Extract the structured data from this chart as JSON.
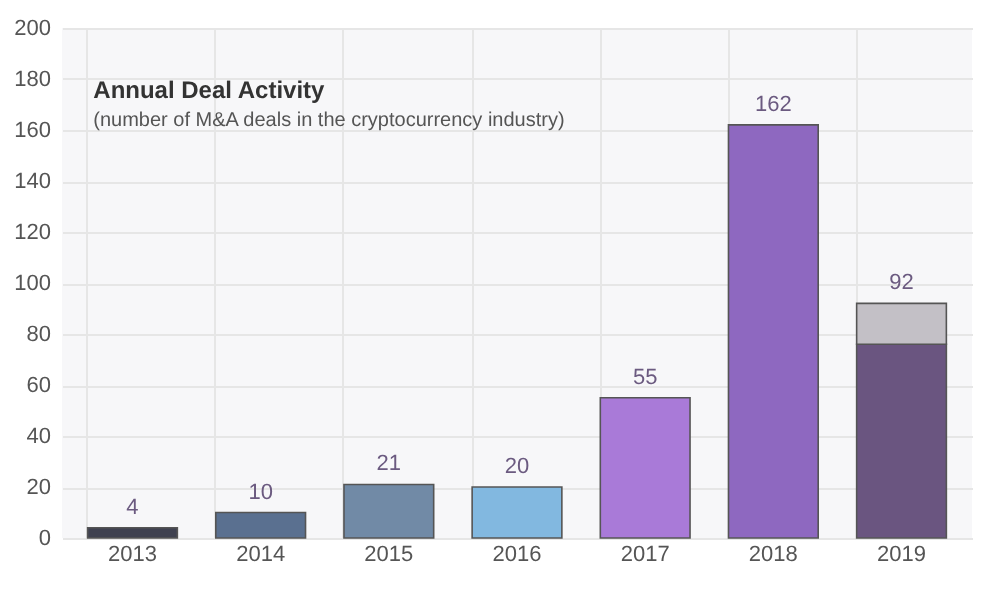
{
  "chart_data": {
    "type": "bar",
    "title": "Annual Deal Activity",
    "subtitle": "(number of M&A deals in the cryptocurrency industry)",
    "categories": [
      "2013",
      "2014",
      "2015",
      "2016",
      "2017",
      "2018",
      "2019"
    ],
    "stacked": true,
    "series": [
      {
        "colors": [
          "#3f4150",
          "#5a7090",
          "#718aa6",
          "#82b8e0",
          "#a97ad8",
          "#8e68c0",
          "#6a5580"
        ],
        "values": [
          4,
          10,
          21,
          20,
          55,
          162,
          76
        ]
      },
      {
        "color": "#c3c0c6",
        "values": [
          null,
          null,
          null,
          null,
          null,
          null,
          16
        ]
      }
    ],
    "totals": [
      "4",
      "10",
      "21",
      "20",
      "55",
      "162",
      "92"
    ],
    "ylim": [
      0,
      200
    ],
    "yticks": [
      0,
      20,
      40,
      60,
      80,
      100,
      120,
      140,
      160,
      180,
      200
    ],
    "grid": true
  }
}
